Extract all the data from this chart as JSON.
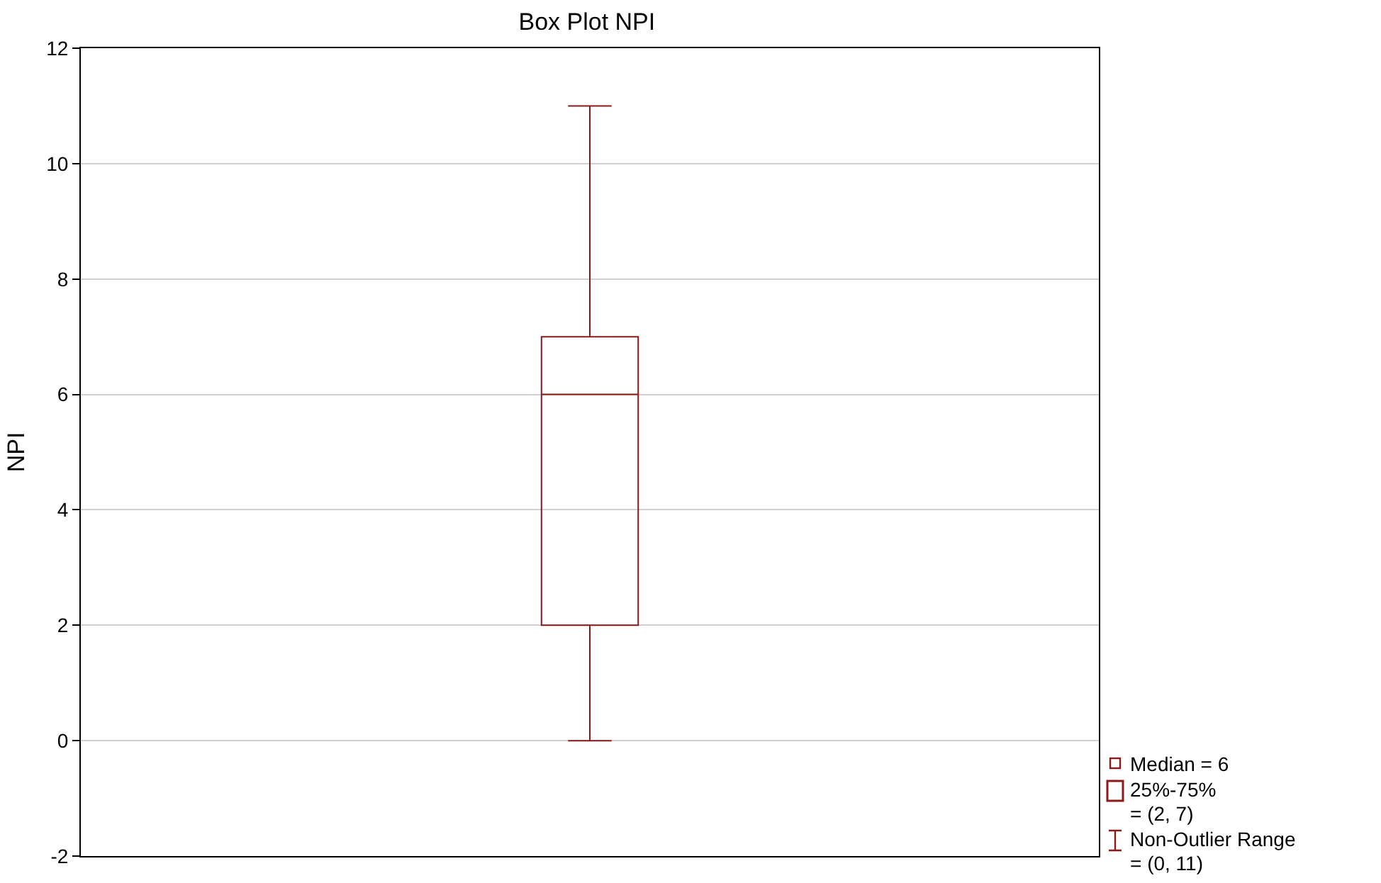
{
  "chart_data": {
    "type": "box",
    "title": "Box Plot NPI",
    "ylabel": "NPI",
    "categories": [
      null
    ],
    "boxes": [
      {
        "low": 0,
        "q1": 2,
        "median": 6,
        "q3": 7,
        "high": 11
      }
    ],
    "color": "#8b1a1a",
    "ylim": [
      -2,
      12
    ],
    "yticks": [
      -2,
      0,
      2,
      4,
      6,
      8,
      10,
      12
    ],
    "grid": "y",
    "annotations": [
      "Median = 6",
      "25%-75%\n= (2, 7)",
      "Non-Outlier Range\n= (0, 11)"
    ]
  }
}
